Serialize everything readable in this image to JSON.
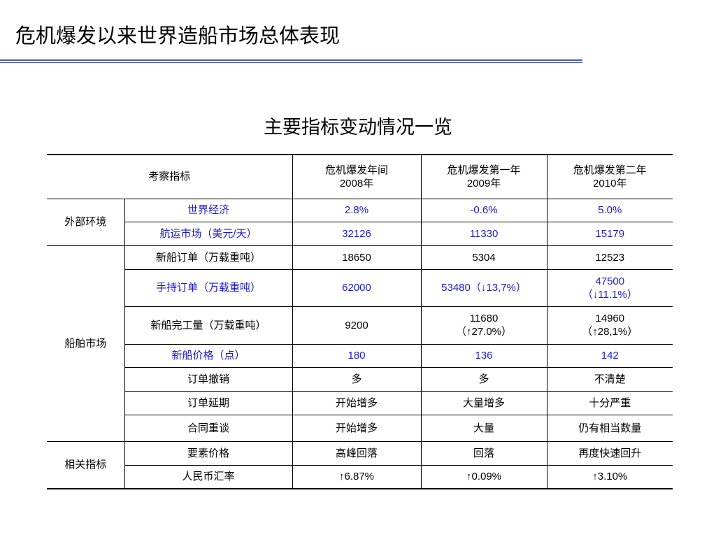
{
  "header": {
    "title": "危机爆发以来世界造船市场总体表现"
  },
  "subtitle": "主要指标变动情况一览",
  "table": {
    "columns": [
      "考察指标",
      "危机爆发年间\n2008年",
      "危机爆发第一年\n2009年",
      "危机爆发第二年\n2010年"
    ],
    "groups": [
      {
        "name": "外部环境",
        "rows": [
          [
            "世界经济",
            "2.8%",
            "-0.6%",
            "5.0%"
          ],
          [
            "航运市场（美元/天）",
            "32126",
            "11330",
            "15179"
          ]
        ]
      },
      {
        "name": "船舶市场",
        "rows": [
          [
            "新船订单（万载重吨）",
            "18650",
            "5304",
            "12523"
          ],
          [
            "手持订单（万载重吨）",
            "62000",
            "53480（↓13,7%）",
            "47500\n（↓11.1%）"
          ],
          [
            "新船完工量（万载重吨）",
            "9200",
            "11680\n（↑27.0%）",
            "14960\n（↑28,1%）"
          ],
          [
            "新船价格（点）",
            "180",
            "136",
            "142"
          ],
          [
            "订单撤销",
            "多",
            "多",
            "不清楚"
          ],
          [
            "订单延期",
            "开始增多",
            "大量增多",
            "十分严重"
          ],
          [
            "合同重谈",
            "开始增多",
            "大量",
            "仍有相当数量"
          ]
        ]
      },
      {
        "name": "相关指标",
        "rows": [
          [
            "要素价格",
            "高峰回落",
            "回落",
            "再度快速回升"
          ],
          [
            "人民币汇率",
            "↑6.87%",
            "↑0.09%",
            "↑3.10%"
          ]
        ]
      }
    ]
  }
}
